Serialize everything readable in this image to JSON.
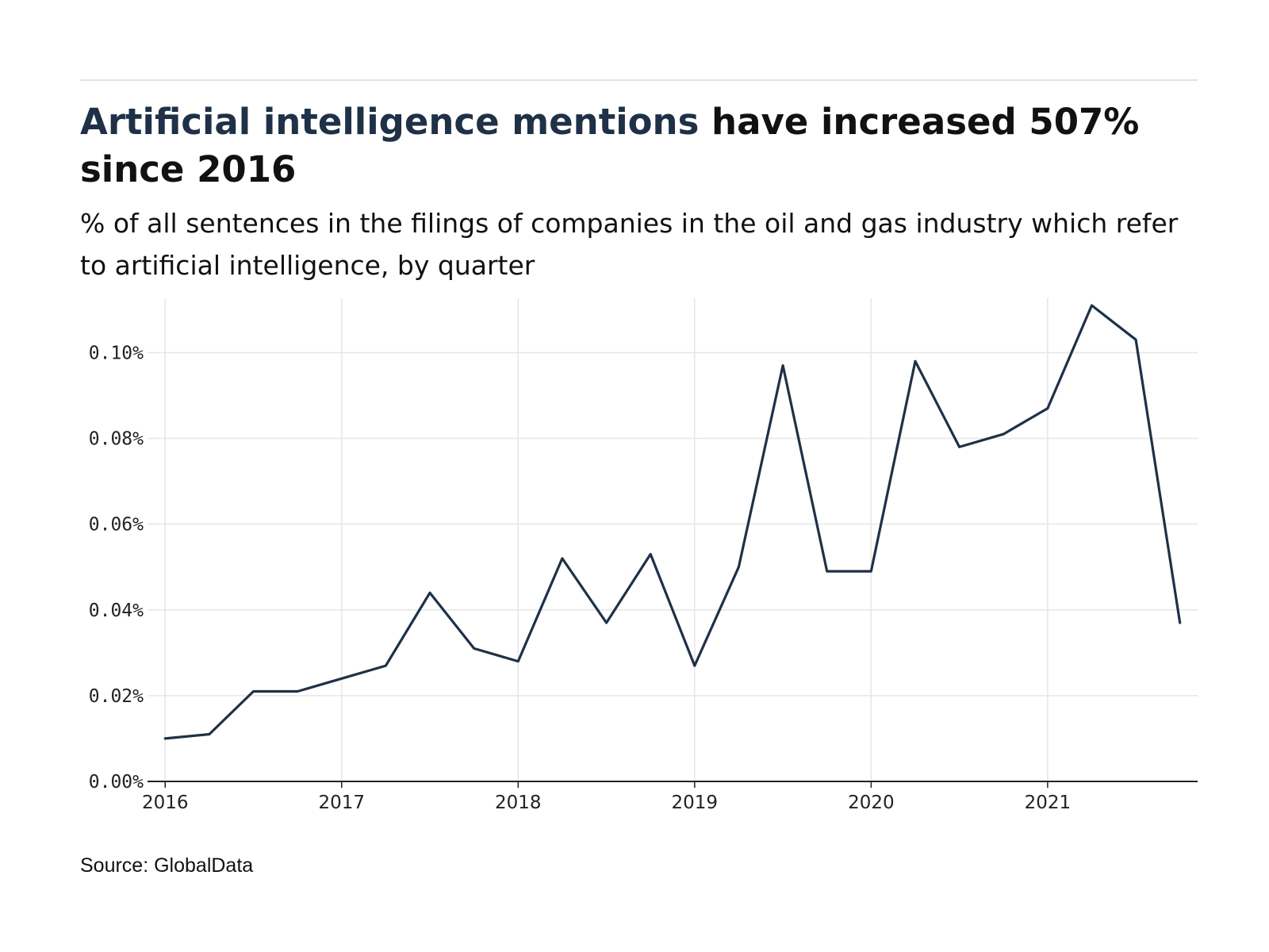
{
  "header": {
    "headline_accent": "Artificial intelligence mentions",
    "headline_rest": " have increased 507% since 2016",
    "subtitle": "% of all sentences in the filings of companies in the oil and gas industry which refer to artificial intelligence, by quarter"
  },
  "footer": {
    "source": "Source: GlobalData"
  },
  "colors": {
    "accent": "#1e3147",
    "line": "#1e3147",
    "grid": "#e6e6e6",
    "axis": "#222222"
  },
  "chart_data": {
    "type": "line",
    "title": "Artificial intelligence mentions have increased 507% since 2016",
    "subtitle": "% of all sentences in the filings of companies in the oil and gas industry which refer to artificial intelligence, by quarter",
    "xlabel": "",
    "ylabel": "",
    "x": [
      2016.0,
      2016.25,
      2016.5,
      2016.75,
      2017.0,
      2017.25,
      2017.5,
      2017.75,
      2018.0,
      2018.25,
      2018.5,
      2018.75,
      2019.0,
      2019.25,
      2019.5,
      2019.75,
      2020.0,
      2020.25,
      2020.5,
      2020.75,
      2021.0,
      2021.25,
      2021.5,
      2021.75
    ],
    "series": [
      {
        "name": "Artificial intelligence",
        "values": [
          0.01,
          0.011,
          0.021,
          0.021,
          0.024,
          0.027,
          0.044,
          0.031,
          0.028,
          0.052,
          0.037,
          0.053,
          0.027,
          0.05,
          0.097,
          0.049,
          0.049,
          0.098,
          0.078,
          0.081,
          0.087,
          0.111,
          0.103,
          0.037
        ]
      }
    ],
    "xlim": [
      2015.9,
      2021.85
    ],
    "ylim": [
      0.0,
      0.111
    ],
    "x_ticks": [
      2016,
      2017,
      2018,
      2019,
      2020,
      2021
    ],
    "x_tick_labels": [
      "2016",
      "2017",
      "2018",
      "2019",
      "2020",
      "2021"
    ],
    "y_ticks": [
      0.0,
      0.02,
      0.04,
      0.06,
      0.08,
      0.1
    ],
    "y_tick_labels": [
      "0.00%",
      "0.02%",
      "0.04%",
      "0.06%",
      "0.08%",
      "0.10%"
    ],
    "grid": true,
    "legend": "none"
  }
}
